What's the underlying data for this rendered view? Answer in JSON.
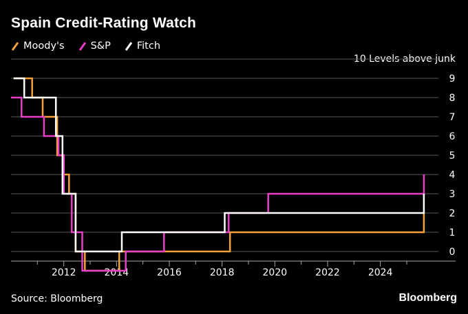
{
  "title": "Spain Credit-Rating Watch",
  "legend": [
    {
      "name": "Moody's",
      "color": "#f5a23a"
    },
    {
      "name": "S&P",
      "color": "#e83fc6"
    },
    {
      "name": "Fitch",
      "color": "#ffffff"
    }
  ],
  "source": "Source: Bloomberg",
  "brand": "Bloomberg",
  "chart_data": {
    "type": "line",
    "title": "Spain Credit-Rating Watch",
    "ylabel": "10 Levels above junk",
    "xlabel": "",
    "xlim": [
      2010.0,
      2026.2
    ],
    "ylim": [
      -0.5,
      9.5
    ],
    "x_ticks": [
      "2012",
      "2014",
      "2016",
      "2018",
      "2020",
      "2022",
      "2024"
    ],
    "x_tick_values": [
      2012,
      2014,
      2016,
      2018,
      2020,
      2022,
      2024
    ],
    "y_ticks": [
      "0",
      "1",
      "2",
      "3",
      "4",
      "5",
      "6",
      "7",
      "8",
      "9"
    ],
    "y_tick_values": [
      0,
      1,
      2,
      3,
      4,
      5,
      6,
      7,
      8,
      9
    ],
    "grid": true,
    "legend_position": "top-left",
    "series": [
      {
        "name": "Moody's",
        "color": "#f5a23a",
        "step": true,
        "points": [
          [
            2010.1,
            10
          ],
          [
            2010.8,
            10
          ],
          [
            2010.8,
            9
          ],
          [
            2011.2,
            9
          ],
          [
            2011.2,
            8
          ],
          [
            2011.75,
            8
          ],
          [
            2011.75,
            6
          ],
          [
            2012.0,
            6
          ],
          [
            2012.0,
            5
          ],
          [
            2012.2,
            5
          ],
          [
            2012.2,
            4
          ],
          [
            2012.45,
            4
          ],
          [
            2012.45,
            1
          ],
          [
            2012.8,
            1
          ],
          [
            2012.8,
            0
          ],
          [
            2014.1,
            0
          ],
          [
            2014.1,
            1
          ],
          [
            2018.3,
            1
          ],
          [
            2018.3,
            2
          ],
          [
            2025.65,
            2
          ],
          [
            2025.65,
            3
          ]
        ]
      },
      {
        "name": "S&P",
        "color": "#e83fc6",
        "step": true,
        "points": [
          [
            2010.0,
            9
          ],
          [
            2010.4,
            9
          ],
          [
            2010.4,
            8
          ],
          [
            2011.25,
            8
          ],
          [
            2011.25,
            7
          ],
          [
            2011.8,
            7
          ],
          [
            2011.8,
            6
          ],
          [
            2012.0,
            6
          ],
          [
            2012.0,
            4
          ],
          [
            2012.3,
            4
          ],
          [
            2012.3,
            2
          ],
          [
            2012.7,
            2
          ],
          [
            2012.7,
            0
          ],
          [
            2014.35,
            0
          ],
          [
            2014.35,
            1
          ],
          [
            2015.8,
            1
          ],
          [
            2015.8,
            2
          ],
          [
            2018.25,
            2
          ],
          [
            2018.25,
            3
          ],
          [
            2019.75,
            3
          ],
          [
            2019.75,
            4
          ],
          [
            2025.65,
            4
          ],
          [
            2025.65,
            5
          ]
        ]
      },
      {
        "name": "Fitch",
        "color": "#ffffff",
        "step": true,
        "points": [
          [
            2010.1,
            10
          ],
          [
            2010.5,
            10
          ],
          [
            2010.5,
            9
          ],
          [
            2011.7,
            9
          ],
          [
            2011.7,
            7
          ],
          [
            2011.95,
            7
          ],
          [
            2011.95,
            4
          ],
          [
            2012.45,
            4
          ],
          [
            2012.45,
            1
          ],
          [
            2014.2,
            1
          ],
          [
            2014.2,
            2
          ],
          [
            2018.1,
            2
          ],
          [
            2018.1,
            3
          ],
          [
            2025.65,
            3
          ],
          [
            2025.65,
            4
          ]
        ]
      }
    ]
  }
}
